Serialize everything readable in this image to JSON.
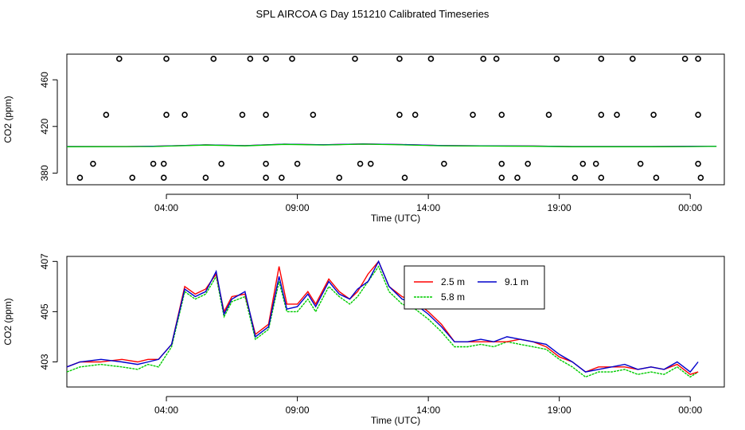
{
  "page_title": "SPL AIRCOA G  Day 151210  Calibrated Timeseries",
  "chart_data": [
    {
      "type": "scatter",
      "name": "top-panel",
      "xlabel": "Time (UTC)",
      "ylabel": "CO2 (ppm)",
      "xlim": [
        -0.8,
        24.3
      ],
      "ylim": [
        370,
        482
      ],
      "x_ticks": [
        3,
        8,
        13,
        18,
        23
      ],
      "x_tick_labels": [
        "04:00",
        "09:00",
        "14:00",
        "19:00",
        "00:00"
      ],
      "y_ticks": [
        380,
        420,
        460
      ],
      "y_tick_labels": [
        "380",
        "420",
        "460"
      ],
      "points": [
        [
          1.2,
          478
        ],
        [
          3.0,
          478
        ],
        [
          4.8,
          478
        ],
        [
          6.2,
          478
        ],
        [
          6.8,
          478
        ],
        [
          7.8,
          478
        ],
        [
          10.2,
          478
        ],
        [
          11.9,
          478
        ],
        [
          13.1,
          478
        ],
        [
          15.1,
          478
        ],
        [
          15.6,
          478
        ],
        [
          17.9,
          478
        ],
        [
          19.6,
          478
        ],
        [
          20.8,
          478
        ],
        [
          22.8,
          478
        ],
        [
          23.3,
          478
        ],
        [
          0.7,
          430
        ],
        [
          3.0,
          430
        ],
        [
          3.7,
          430
        ],
        [
          5.9,
          430
        ],
        [
          6.8,
          430
        ],
        [
          8.6,
          430
        ],
        [
          11.9,
          430
        ],
        [
          12.5,
          430
        ],
        [
          14.7,
          430
        ],
        [
          15.8,
          430
        ],
        [
          17.6,
          430
        ],
        [
          19.6,
          430
        ],
        [
          20.2,
          430
        ],
        [
          21.6,
          430
        ],
        [
          23.3,
          430
        ],
        [
          0.2,
          388
        ],
        [
          2.5,
          388
        ],
        [
          2.9,
          388
        ],
        [
          5.1,
          388
        ],
        [
          6.8,
          388
        ],
        [
          8.0,
          388
        ],
        [
          10.4,
          388
        ],
        [
          10.8,
          388
        ],
        [
          13.6,
          388
        ],
        [
          15.8,
          388
        ],
        [
          16.8,
          388
        ],
        [
          18.9,
          388
        ],
        [
          19.4,
          388
        ],
        [
          21.1,
          388
        ],
        [
          23.3,
          388
        ],
        [
          -0.3,
          376
        ],
        [
          1.7,
          376
        ],
        [
          2.9,
          376
        ],
        [
          4.5,
          376
        ],
        [
          6.8,
          376
        ],
        [
          7.4,
          376
        ],
        [
          9.6,
          376
        ],
        [
          12.1,
          376
        ],
        [
          15.8,
          376
        ],
        [
          16.4,
          376
        ],
        [
          18.6,
          376
        ],
        [
          19.6,
          376
        ],
        [
          21.7,
          376
        ],
        [
          23.4,
          376
        ]
      ],
      "series": [
        {
          "name": "2.5 m",
          "color": "#ff0000",
          "x": [
            -0.8,
            1.5,
            2.5,
            3.2,
            4.5,
            6.0,
            7.5,
            9.0,
            10.5,
            12.0,
            13.5,
            15.0,
            17.0,
            18.5,
            20.0,
            21.5,
            23.0,
            24.0
          ],
          "values": [
            402.8,
            402.8,
            403.0,
            403.4,
            404.2,
            403.5,
            404.8,
            404.3,
            405.0,
            404.5,
            403.6,
            403.4,
            403.2,
            402.8,
            402.8,
            402.8,
            402.9,
            403.0
          ]
        },
        {
          "name": "9.1 m",
          "color": "#0000ff",
          "x": [
            -0.8,
            1.5,
            2.5,
            3.2,
            4.5,
            6.0,
            7.5,
            9.0,
            10.5,
            12.0,
            13.5,
            15.0,
            17.0,
            18.5,
            20.0,
            21.5,
            23.0,
            24.0
          ],
          "values": [
            402.8,
            402.8,
            403.0,
            403.4,
            404.2,
            403.5,
            404.8,
            404.3,
            405.0,
            404.5,
            403.6,
            403.4,
            403.2,
            402.8,
            402.8,
            402.8,
            402.9,
            403.0
          ]
        },
        {
          "name": "5.8 m",
          "color": "#00cc00",
          "x": [
            -0.8,
            1.5,
            2.5,
            3.2,
            4.5,
            6.0,
            7.5,
            9.0,
            10.5,
            12.0,
            13.5,
            15.0,
            17.0,
            18.5,
            20.0,
            21.5,
            23.0,
            24.0
          ],
          "values": [
            402.6,
            402.7,
            402.8,
            403.2,
            404.0,
            403.3,
            404.6,
            404.1,
            404.8,
            404.2,
            403.4,
            403.2,
            403.0,
            402.6,
            402.6,
            402.6,
            402.7,
            402.9
          ]
        }
      ]
    },
    {
      "type": "line",
      "name": "bottom-panel",
      "xlabel": "Time (UTC)",
      "ylabel": "CO2 (ppm)",
      "xlim": [
        -0.8,
        24.3
      ],
      "ylim": [
        402.0,
        407.2
      ],
      "x_ticks": [
        3,
        8,
        13,
        18,
        23
      ],
      "x_tick_labels": [
        "04:00",
        "09:00",
        "14:00",
        "19:00",
        "00:00"
      ],
      "y_ticks": [
        403,
        405,
        407
      ],
      "y_tick_labels": [
        "403",
        "405",
        "407"
      ],
      "legend": {
        "position": "top-right",
        "entries": [
          "2.5 m",
          "9.1 m",
          "5.8 m"
        ]
      },
      "x": [
        -0.8,
        -0.3,
        0.5,
        1.3,
        1.9,
        2.3,
        2.7,
        3.2,
        3.7,
        4.1,
        4.5,
        4.9,
        5.2,
        5.5,
        6.0,
        6.4,
        6.9,
        7.3,
        7.6,
        8.0,
        8.4,
        8.7,
        9.2,
        9.6,
        10.0,
        10.3,
        10.7,
        11.1,
        11.5,
        12.0,
        12.5,
        13.0,
        13.5,
        14.0,
        14.5,
        15.0,
        15.5,
        16.0,
        16.5,
        17.0,
        17.5,
        18.0,
        18.5,
        19.0,
        19.5,
        20.0,
        20.5,
        21.0,
        21.5,
        22.0,
        22.5,
        23.0,
        23.3
      ],
      "series": [
        {
          "name": "2.5 m",
          "color": "#ff0000",
          "values": [
            402.8,
            403.0,
            403.0,
            403.1,
            403.0,
            403.1,
            403.1,
            403.7,
            406.0,
            405.7,
            405.9,
            406.5,
            405.0,
            405.6,
            405.7,
            404.1,
            404.5,
            406.8,
            405.3,
            405.3,
            405.8,
            405.3,
            406.3,
            405.8,
            405.5,
            405.8,
            406.5,
            407.0,
            406.0,
            405.6,
            405.4,
            405.0,
            404.5,
            403.8,
            403.8,
            403.8,
            403.8,
            403.8,
            403.9,
            403.8,
            403.6,
            403.2,
            403.0,
            402.6,
            402.8,
            402.8,
            402.8,
            402.7,
            402.8,
            402.7,
            402.9,
            402.5,
            402.6
          ]
        },
        {
          "name": "9.1 m",
          "color": "#0000cc",
          "values": [
            402.8,
            403.0,
            403.1,
            403.0,
            402.9,
            403.0,
            403.1,
            403.7,
            405.9,
            405.6,
            405.8,
            406.6,
            404.9,
            405.5,
            405.8,
            404.0,
            404.4,
            406.4,
            405.1,
            405.2,
            405.7,
            405.2,
            406.2,
            405.7,
            405.5,
            405.9,
            406.2,
            407.0,
            406.0,
            405.5,
            405.3,
            404.9,
            404.4,
            403.8,
            403.8,
            403.9,
            403.8,
            404.0,
            403.9,
            403.8,
            403.7,
            403.3,
            403.0,
            402.6,
            402.7,
            402.8,
            402.9,
            402.7,
            402.8,
            402.7,
            403.0,
            402.6,
            403.0
          ]
        },
        {
          "name": "5.8 m",
          "color": "#00cc00",
          "values": [
            402.6,
            402.8,
            402.9,
            402.8,
            402.7,
            402.9,
            402.8,
            403.6,
            405.8,
            405.5,
            405.7,
            406.4,
            404.8,
            405.4,
            405.6,
            403.9,
            404.3,
            406.2,
            405.0,
            405.0,
            405.5,
            405.0,
            406.0,
            405.6,
            405.3,
            405.6,
            406.2,
            406.8,
            405.8,
            405.3,
            405.1,
            404.7,
            404.2,
            403.6,
            403.6,
            403.7,
            403.6,
            403.8,
            403.7,
            403.6,
            403.5,
            403.1,
            402.8,
            402.4,
            402.6,
            402.6,
            402.7,
            402.5,
            402.6,
            402.5,
            402.8,
            402.4,
            402.6
          ]
        }
      ]
    }
  ]
}
